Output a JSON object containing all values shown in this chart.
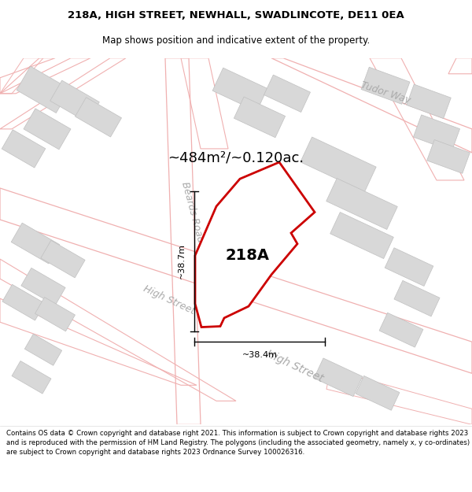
{
  "title_line1": "218A, HIGH STREET, NEWHALL, SWADLINCOTE, DE11 0EA",
  "title_line2": "Map shows position and indicative extent of the property.",
  "area_label": "~484m²/~0.120ac.",
  "property_label": "218A",
  "dim_vertical": "~38.7m",
  "dim_horizontal": "~38.4m",
  "footer_text": "Contains OS data © Crown copyright and database right 2021. This information is subject to Crown copyright and database rights 2023 and is reproduced with the permission of HM Land Registry. The polygons (including the associated geometry, namely x, y co-ordinates) are subject to Crown copyright and database rights 2023 Ordnance Survey 100026316.",
  "map_bg": "#ffffff",
  "road_line_color": "#f0b0b0",
  "plot_color": "#cc0000",
  "building_fill": "#d8d8d8",
  "building_edge": "#c0c0c0",
  "road_label_color": "#aaaaaa",
  "title_fontsize": 9.5,
  "subtitle_fontsize": 8.5,
  "area_fontsize": 13,
  "label_fontsize": 14,
  "dim_fontsize": 8,
  "road_label_fontsize": 9
}
